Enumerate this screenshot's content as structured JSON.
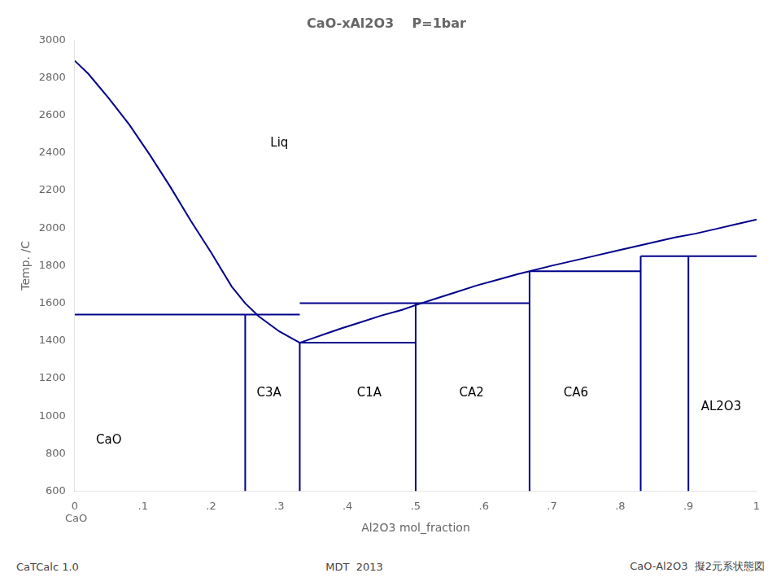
{
  "chart_data": {
    "type": "line",
    "title": "CaO-xAl2O3    P=1bar",
    "x_label": "Al2O3 mol_fraction",
    "y_label": "Temp. /C",
    "xlim": [
      0,
      1
    ],
    "ylim": [
      600,
      3000
    ],
    "xticks": [
      0,
      {
        "value": 0.1,
        "label": ".1"
      },
      {
        "value": 0.2,
        "label": ".2"
      },
      {
        "value": 0.3,
        "label": ".3"
      },
      {
        "value": 0.4,
        "label": ".4"
      },
      {
        "value": 0.5,
        "label": ".5"
      },
      {
        "value": 0.6,
        "label": ".6"
      },
      {
        "value": 0.7,
        "label": ".7"
      },
      {
        "value": 0.8,
        "label": ".8"
      },
      {
        "value": 0.9,
        "label": ".9"
      },
      1
    ],
    "yticks": [
      600,
      800,
      1000,
      1200,
      1400,
      1600,
      1800,
      2000,
      2200,
      2400,
      2600,
      2800,
      3000
    ],
    "grid": false,
    "color": "#00008B",
    "series": [
      {
        "x": [
          0.0,
          0.02,
          0.05,
          0.08,
          0.11,
          0.14,
          0.17,
          0.2,
          0.23,
          0.25,
          0.27,
          0.285,
          0.3,
          0.315,
          0.33
        ],
        "values": [
          2890,
          2820,
          2690,
          2550,
          2390,
          2220,
          2040,
          1870,
          1690,
          1600,
          1530,
          1490,
          1450,
          1420,
          1390
        ]
      },
      {
        "x": [
          0.33,
          0.35,
          0.37,
          0.39,
          0.42,
          0.45,
          0.48,
          0.5,
          0.53,
          0.56,
          0.59,
          0.62,
          0.65,
          0.667
        ],
        "values": [
          1390,
          1415,
          1440,
          1465,
          1500,
          1535,
          1565,
          1590,
          1625,
          1660,
          1695,
          1725,
          1755,
          1770
        ]
      },
      {
        "x": [
          0.667,
          0.7,
          0.73,
          0.76,
          0.79,
          0.82,
          0.85,
          0.88,
          0.91,
          0.94,
          0.97,
          1.0
        ],
        "values": [
          1770,
          1800,
          1825,
          1850,
          1875,
          1900,
          1925,
          1950,
          1970,
          1995,
          2020,
          2045
        ]
      },
      {
        "x": [
          0.0,
          0.25
        ],
        "values": [
          1540,
          1540
        ]
      },
      {
        "x": [
          0.25,
          0.33
        ],
        "values": [
          1540,
          1540
        ]
      },
      {
        "x": [
          0.33,
          0.5
        ],
        "values": [
          1390,
          1390
        ]
      },
      {
        "x": [
          0.33,
          0.5
        ],
        "values": [
          1600,
          1600
        ]
      },
      {
        "x": [
          0.5,
          0.667
        ],
        "values": [
          1600,
          1600
        ]
      },
      {
        "x": [
          0.667,
          0.83
        ],
        "values": [
          1770,
          1770
        ]
      },
      {
        "x": [
          0.83,
          1.0
        ],
        "values": [
          1850,
          1850
        ]
      },
      {
        "x": [
          0.25,
          0.25
        ],
        "values": [
          600,
          1540
        ]
      },
      {
        "x": [
          0.33,
          0.33
        ],
        "values": [
          600,
          1390
        ]
      },
      {
        "x": [
          0.5,
          0.5
        ],
        "values": [
          600,
          1600
        ]
      },
      {
        "x": [
          0.667,
          0.667
        ],
        "values": [
          600,
          1770
        ]
      },
      {
        "x": [
          0.83,
          0.83
        ],
        "values": [
          600,
          1850
        ]
      },
      {
        "x": [
          0.9,
          0.9
        ],
        "values": [
          600,
          1850
        ]
      }
    ],
    "annotations": [
      {
        "text": "Liq",
        "x": 0.3,
        "y": 2450
      },
      {
        "text": "CaO",
        "x": 0.05,
        "y": 870
      },
      {
        "text": "C3A",
        "x": 0.285,
        "y": 1120
      },
      {
        "text": "C1A",
        "x": 0.432,
        "y": 1120
      },
      {
        "text": "CA2",
        "x": 0.582,
        "y": 1120
      },
      {
        "text": "CA6",
        "x": 0.735,
        "y": 1120
      },
      {
        "text": "AL2O3",
        "x": 0.948,
        "y": 1050
      }
    ],
    "axis_note": "CaO",
    "footnotes": [
      "CaTCalc 1.0",
      "MDT  2013",
      "CaO-Al2O3  擬2元系状態図"
    ]
  }
}
